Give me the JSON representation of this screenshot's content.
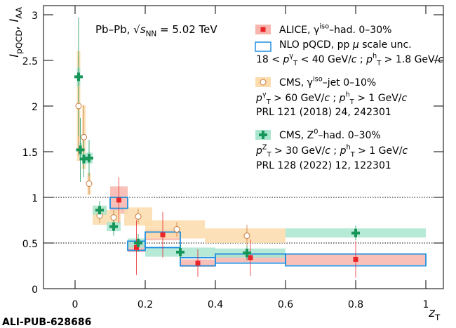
{
  "chart_data": {
    "type": "scatter",
    "xlim": [
      -0.09,
      1.05
    ],
    "ylim": [
      0,
      3.1
    ],
    "xticks": [
      0,
      0.2,
      0.4,
      0.6,
      0.8,
      1
    ],
    "yticks": [
      0,
      0.5,
      1,
      1.5,
      2,
      2.5,
      3
    ],
    "x_label": [
      {
        "it": "z"
      },
      {
        "sub": "T"
      }
    ],
    "y_label": [
      {
        "it": "I"
      },
      {
        "sub": "pQCD"
      },
      ", ",
      {
        "it": "I"
      },
      {
        "sub": "AA"
      }
    ],
    "annotation": [
      "Pb–Pb, √",
      {
        "it": "s"
      },
      {
        "sub": "NN"
      },
      " = 5.02 TeV"
    ],
    "watermark": "ALI-PUB-628686",
    "hlines": [
      1,
      0.5
    ],
    "series": [
      {
        "name": [
          "ALICE, γ",
          {
            "sup": "iso"
          },
          "–had. 0–30%"
        ],
        "marker": "square",
        "color": "#e8262a",
        "box_color": "#f7b5ad",
        "notes": [
          [
            "18 < ",
            {
              "it": "p"
            },
            {
              "sup": "γ"
            },
            {
              "sub": "T"
            },
            " < 40 GeV/",
            {
              "it": "c"
            },
            "  ;  ",
            {
              "it": "p"
            },
            {
              "sup": "h"
            },
            {
              "sub": "T"
            },
            " > 1.8 GeV/",
            {
              "it": "c"
            }
          ]
        ],
        "x": [
          0.125,
          0.175,
          0.25,
          0.35,
          0.5,
          0.8
        ],
        "values": [
          0.97,
          0.45,
          0.59,
          0.28,
          0.34,
          0.32
        ],
        "errors": [
          0.25,
          0.3,
          0.25,
          0.15,
          0.2,
          0.2
        ],
        "sys": [
          0.15,
          0.05,
          0.06,
          0.04,
          0.05,
          0.06
        ],
        "x_low": [
          0.1,
          0.15,
          0.2,
          0.3,
          0.4,
          0.6
        ],
        "x_high": [
          0.15,
          0.2,
          0.3,
          0.4,
          0.6,
          1.0
        ]
      },
      {
        "name": [
          "CMS, γ",
          {
            "sup": "iso"
          },
          "–jet 0–10%"
        ],
        "marker": "circle",
        "color": "#c87a3c",
        "box_color": "#fcdcab",
        "notes": [
          [
            {
              "it": "p"
            },
            {
              "sup": "γ"
            },
            {
              "sub": "T"
            },
            " > 60 GeV/",
            {
              "it": "c"
            },
            "  ;  ",
            {
              "it": "p"
            },
            {
              "sup": "h"
            },
            {
              "sub": "T"
            },
            " > 1 GeV/",
            {
              "it": "c"
            }
          ],
          "PRL 121 (2018) 24, 242301"
        ],
        "x": [
          0.01,
          0.025,
          0.04,
          0.07,
          0.11,
          0.18,
          0.29,
          0.49
        ],
        "values": [
          2.0,
          1.66,
          1.15,
          0.8,
          0.78,
          0.79,
          0.65,
          0.58
        ],
        "errors": [
          0.55,
          0.35,
          0.12,
          0.08,
          0.08,
          0.08,
          0.08,
          0.12
        ],
        "sys": [
          0.6,
          0.35,
          0.12,
          0.1,
          0.08,
          0.1,
          0.1,
          0.08
        ],
        "x_low": [
          0.005,
          0.02,
          0.035,
          0.05,
          0.09,
          0.14,
          0.2,
          0.37
        ],
        "x_high": [
          0.015,
          0.03,
          0.045,
          0.09,
          0.13,
          0.22,
          0.37,
          0.6
        ]
      },
      {
        "name": [
          "CMS, Z",
          {
            "sup": "0"
          },
          "–had. 0–30%"
        ],
        "marker": "cross",
        "color": "#17965a",
        "box_color": "#a9e5cf",
        "notes": [
          [
            {
              "it": "p"
            },
            {
              "sup": "Z"
            },
            {
              "sub": "T"
            },
            " > 30 GeV/",
            {
              "it": "c"
            },
            "  ;  ",
            {
              "it": "p"
            },
            {
              "sup": "h"
            },
            {
              "sub": "T"
            },
            " > 1 GeV/",
            {
              "it": "c"
            }
          ],
          "PRL 128 (2022) 12, 122301"
        ],
        "x": [
          0.01,
          0.015,
          0.025,
          0.04,
          0.07,
          0.11,
          0.18,
          0.3,
          0.49,
          0.8
        ],
        "values": [
          2.32,
          1.52,
          1.42,
          1.43,
          0.86,
          0.68,
          0.5,
          0.4,
          0.39,
          0.61
        ],
        "errors": [
          0.65,
          0.35,
          0.2,
          0.2,
          0.1,
          0.1,
          0.1,
          0.08,
          0.08,
          0.08
        ],
        "sys": [
          0.1,
          0.08,
          0.06,
          0.06,
          0.05,
          0.05,
          0.05,
          0.05,
          0.05,
          0.05
        ],
        "x_low": [
          0.005,
          0.01,
          0.02,
          0.03,
          0.05,
          0.09,
          0.15,
          0.2,
          0.4,
          0.6
        ],
        "x_high": [
          0.015,
          0.02,
          0.03,
          0.05,
          0.09,
          0.13,
          0.2,
          0.4,
          0.6,
          1.0
        ]
      }
    ],
    "band": {
      "name": [
        "NLO pQCD, pp ",
        {
          "it": "μ"
        },
        " scale unc."
      ],
      "color": "#1f8fe0",
      "x_low": [
        0.1,
        0.15,
        0.2,
        0.3,
        0.4,
        0.6
      ],
      "x_high": [
        0.15,
        0.2,
        0.3,
        0.4,
        0.6,
        1.0
      ],
      "low": [
        0.88,
        0.42,
        0.45,
        0.25,
        0.28,
        0.25
      ],
      "high": [
        1.0,
        0.52,
        0.62,
        0.34,
        0.38,
        0.38
      ]
    }
  }
}
